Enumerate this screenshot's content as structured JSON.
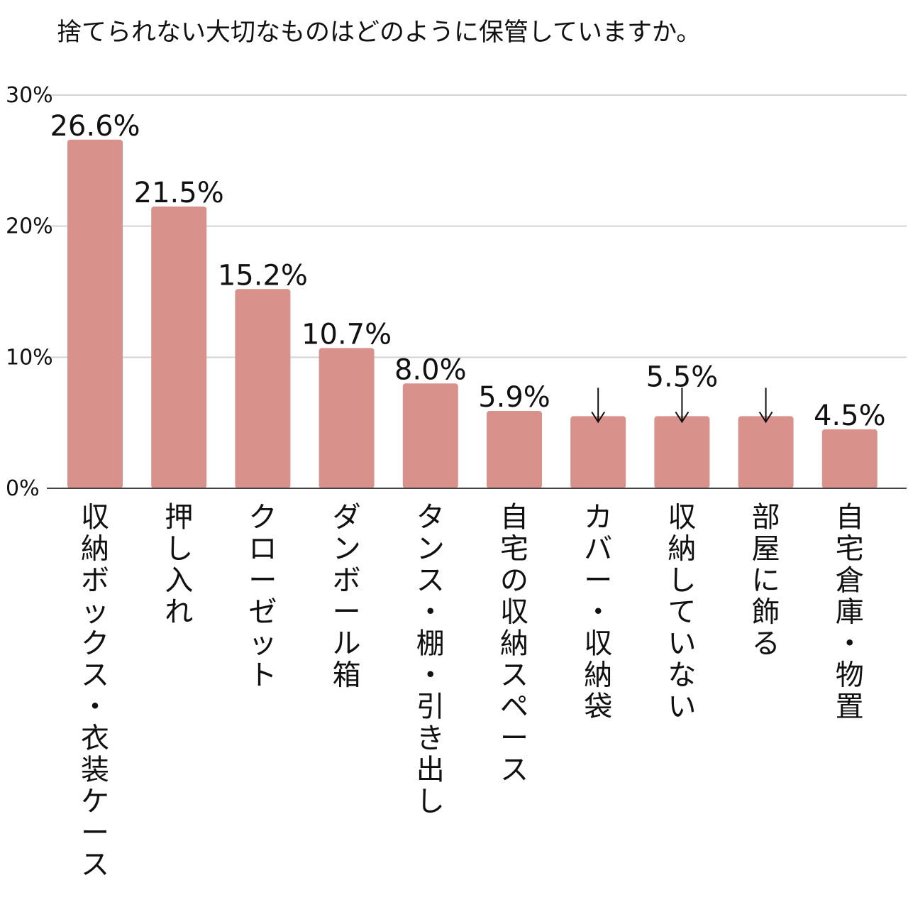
{
  "chart_data": {
    "type": "bar",
    "title": "捨てられない大切なものはどのように保管していますか。",
    "xlabel": "",
    "ylabel": "",
    "ylim": [
      0,
      30
    ],
    "yticks": [
      0,
      10,
      20,
      30
    ],
    "ytick_labels": [
      "0%",
      "10%",
      "20%",
      "30%"
    ],
    "grid": true,
    "bar_color": "#d9918c",
    "categories": [
      "収納ボックス・衣装ケース",
      "押し入れ",
      "クローゼット",
      "ダンボール箱",
      "タンス・棚・引き出し",
      "自宅の収納スペース",
      "カバー・収納袋",
      "収納していない",
      "部屋に飾る",
      "自宅倉庫・物置"
    ],
    "values": [
      26.6,
      21.5,
      15.2,
      10.7,
      8.0,
      5.9,
      5.5,
      5.5,
      5.5,
      4.5
    ],
    "value_labels": [
      "26.6%",
      "21.5%",
      "15.2%",
      "10.7%",
      "8.0%",
      "5.9%",
      "↓",
      "5.5%",
      "↓",
      "4.5%"
    ],
    "label_has_arrow": [
      false,
      false,
      false,
      false,
      false,
      false,
      true,
      true,
      true,
      false
    ]
  }
}
